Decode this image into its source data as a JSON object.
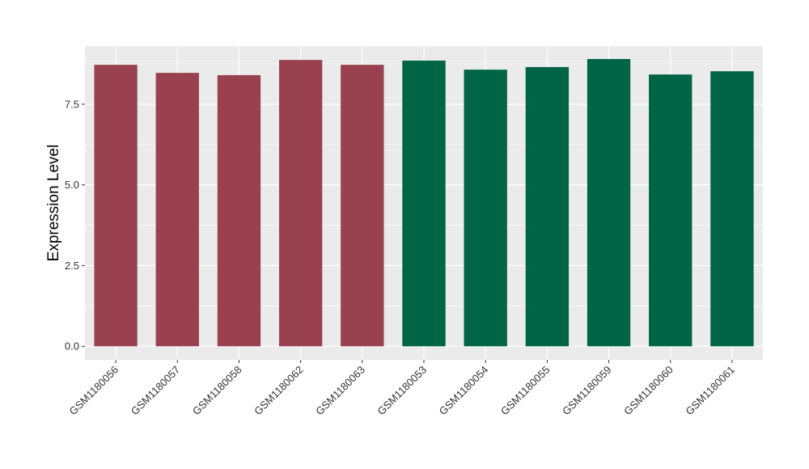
{
  "chart_data": {
    "type": "bar",
    "title": "",
    "xlabel": "",
    "ylabel": "Expression Level",
    "ylim": [
      -0.42,
      9.3
    ],
    "yticks": [
      0.0,
      2.5,
      5.0,
      7.5
    ],
    "ytick_labels": [
      "0.0",
      "2.5",
      "5.0",
      "7.5"
    ],
    "grid": true,
    "categories": [
      "GSM1180056",
      "GSM1180057",
      "GSM1180058",
      "GSM1180062",
      "GSM1180063",
      "GSM1180053",
      "GSM1180054",
      "GSM1180055",
      "GSM1180059",
      "GSM1180060",
      "GSM1180061"
    ],
    "values": [
      8.72,
      8.47,
      8.4,
      8.87,
      8.72,
      8.85,
      8.57,
      8.65,
      8.9,
      8.42,
      8.52
    ],
    "groups": [
      "a",
      "a",
      "a",
      "a",
      "a",
      "b",
      "b",
      "b",
      "b",
      "b",
      "b"
    ],
    "group_colors": {
      "a": "#99414f",
      "b": "#006544"
    },
    "panel_color": "#ebebeb",
    "grid_color": "#ffffff"
  }
}
